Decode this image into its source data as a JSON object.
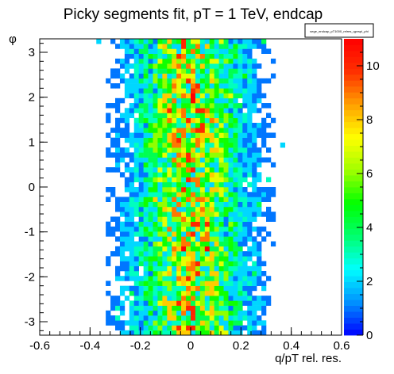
{
  "chart_data": {
    "type": "heatmap",
    "title": "Picky segments fit, pT = 1 TeV, endcap",
    "xlabel": "q/pT rel. res.",
    "ylabel": "φ",
    "histogram_name": "sege_endcap_pT1000_relres_qpvspi_phi",
    "xlim": [
      -0.6,
      0.6
    ],
    "ylim": [
      -3.3,
      3.3
    ],
    "zlim": [
      0,
      11
    ],
    "xticks": [
      "-0.6",
      "-0.4",
      "-0.2",
      "0",
      "0.2",
      "0.4",
      "0.6"
    ],
    "yticks": [
      "-3",
      "-2",
      "-1",
      "0",
      "1",
      "2",
      "3"
    ],
    "zticks": [
      "0",
      "2",
      "4",
      "6",
      "8",
      "10"
    ],
    "bins": {
      "nx": 64,
      "ny": 60
    },
    "distribution": {
      "x_mean": 0.0,
      "x_sigma": 0.14,
      "peak_counts": 6,
      "max_counts": 11
    },
    "grid": false,
    "palette": [
      "#0000ff",
      "#0090ff",
      "#00ffff",
      "#00ff70",
      "#00ff00",
      "#a0ff00",
      "#ffff00",
      "#ffa000",
      "#ff3000",
      "#ff0000"
    ]
  }
}
